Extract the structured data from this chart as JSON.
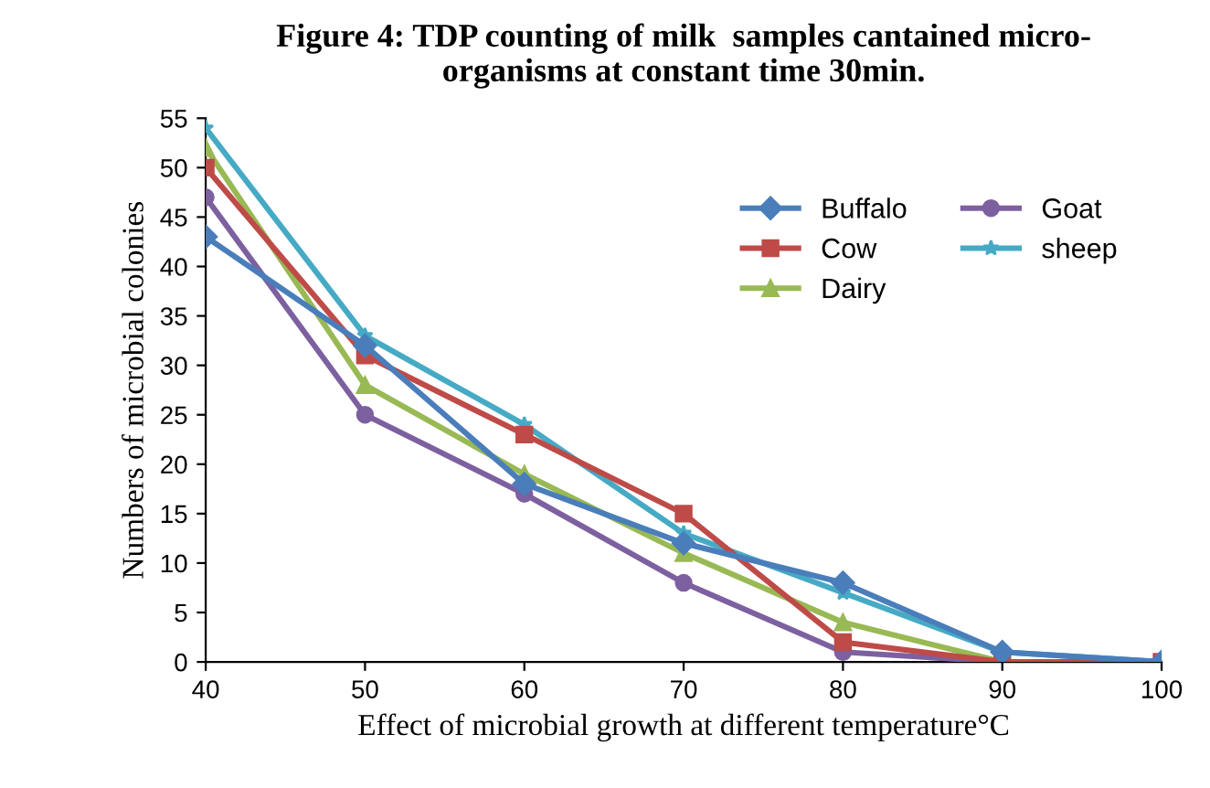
{
  "chart_data": {
    "type": "line",
    "title": "Figure 4: TDP counting of milk  samples cantained micro-\norganisms at constant time 30min.",
    "xlabel": "Effect of microbial growth at different temperature°C",
    "ylabel": "Numbers of microbial colonies",
    "x": [
      40,
      50,
      60,
      70,
      80,
      90,
      100
    ],
    "series": [
      {
        "name": "Buffalo",
        "color": "#4a7ebb",
        "marker": "diamond",
        "values": [
          43,
          32,
          18,
          12,
          8,
          1,
          0
        ]
      },
      {
        "name": "Cow",
        "color": "#be4b48",
        "marker": "square",
        "values": [
          50,
          31,
          23,
          15,
          2,
          0,
          0
        ]
      },
      {
        "name": "Dairy",
        "color": "#98b954",
        "marker": "triangle",
        "values": [
          52,
          28,
          19,
          11,
          4,
          0,
          0
        ]
      },
      {
        "name": "Goat",
        "color": "#7d60a0",
        "marker": "circle",
        "values": [
          47,
          25,
          17,
          8,
          1,
          0,
          0
        ]
      },
      {
        "name": "sheep",
        "color": "#46aac5",
        "marker": "star",
        "values": [
          54,
          33,
          24,
          13,
          7,
          1,
          0
        ]
      }
    ],
    "xlim": [
      40,
      100
    ],
    "xticks": [
      40,
      50,
      60,
      70,
      80,
      90,
      100
    ],
    "ylim": [
      0,
      55
    ],
    "yticks": [
      0,
      5,
      10,
      15,
      20,
      25,
      30,
      35,
      40,
      45,
      50,
      55
    ],
    "grid": false,
    "legend": "top right",
    "line_style": "solid"
  }
}
